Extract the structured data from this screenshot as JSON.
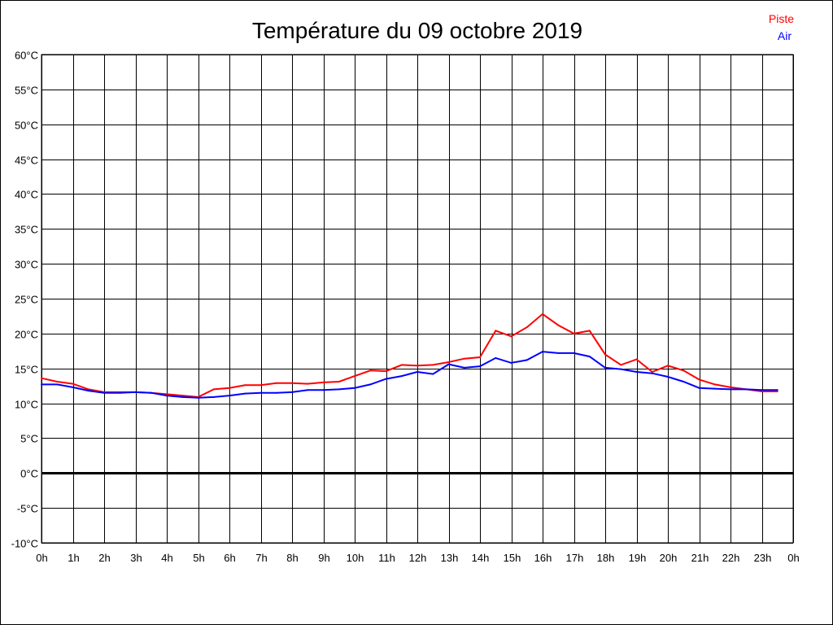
{
  "chart_data": {
    "type": "line",
    "title": "Température du 09 octobre 2019",
    "xlabel": "",
    "ylabel": "",
    "x_ticks": [
      "0h",
      "1h",
      "2h",
      "3h",
      "4h",
      "5h",
      "6h",
      "7h",
      "8h",
      "9h",
      "10h",
      "11h",
      "12h",
      "13h",
      "14h",
      "15h",
      "16h",
      "17h",
      "18h",
      "19h",
      "20h",
      "21h",
      "22h",
      "23h",
      "0h"
    ],
    "y_ticks": [
      "60°C",
      "55°C",
      "50°C",
      "45°C",
      "40°C",
      "35°C",
      "30°C",
      "25°C",
      "20°C",
      "15°C",
      "10°C",
      "5°C",
      "0°C",
      "-5°C",
      "-10°C"
    ],
    "xlim": [
      0,
      24
    ],
    "ylim": [
      -10,
      60
    ],
    "grid": true,
    "legend_position": "top-right",
    "x": [
      0,
      0.5,
      1,
      1.5,
      2,
      2.5,
      3,
      3.5,
      4,
      4.5,
      5,
      5.5,
      6,
      6.5,
      7,
      7.5,
      8,
      8.5,
      9,
      9.5,
      10,
      10.5,
      11,
      11.5,
      12,
      12.5,
      13,
      13.5,
      14,
      14.5,
      15,
      15.5,
      16,
      16.5,
      17,
      17.5,
      18,
      18.5,
      19,
      19.5,
      20,
      20.5,
      21,
      21.5,
      22,
      22.5,
      23,
      23.5
    ],
    "series": [
      {
        "name": "Piste",
        "color": "#ff0000",
        "values": [
          13.6,
          13.1,
          12.8,
          12.0,
          11.6,
          11.6,
          11.6,
          11.5,
          11.3,
          11.1,
          10.9,
          12.0,
          12.2,
          12.6,
          12.6,
          12.9,
          12.9,
          12.8,
          13.0,
          13.1,
          13.9,
          14.7,
          14.6,
          15.5,
          15.4,
          15.5,
          15.9,
          16.4,
          16.6,
          20.4,
          19.6,
          20.9,
          22.8,
          21.2,
          20.0,
          20.4,
          17.0,
          15.5,
          16.3,
          14.5,
          15.4,
          14.7,
          13.4,
          12.7,
          12.3,
          12.0,
          11.7,
          11.7
        ]
      },
      {
        "name": "Air",
        "color": "#0000ff",
        "values": [
          12.7,
          12.7,
          12.3,
          11.8,
          11.5,
          11.5,
          11.6,
          11.5,
          11.1,
          10.9,
          10.8,
          10.9,
          11.1,
          11.4,
          11.5,
          11.5,
          11.6,
          11.9,
          11.9,
          12.0,
          12.2,
          12.7,
          13.5,
          13.9,
          14.5,
          14.2,
          15.6,
          15.1,
          15.3,
          16.5,
          15.8,
          16.2,
          17.4,
          17.2,
          17.2,
          16.7,
          15.1,
          14.9,
          14.5,
          14.3,
          13.8,
          13.1,
          12.2,
          12.1,
          12.0,
          12.0,
          11.9,
          11.9
        ]
      }
    ]
  }
}
